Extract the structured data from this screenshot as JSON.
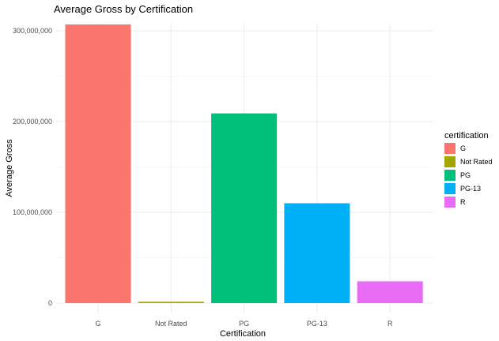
{
  "chart_data": {
    "type": "bar",
    "title": "Average Gross by Certification",
    "xlabel": "Certification",
    "ylabel": "Average Gross",
    "categories": [
      "G",
      "Not Rated",
      "PG",
      "PG-13",
      "R"
    ],
    "values": [
      307000000,
      1500000,
      209000000,
      110000000,
      24000000
    ],
    "colors": [
      "#F8766D",
      "#A3A500",
      "#00BF7D",
      "#00B0F6",
      "#E76BF3"
    ],
    "ylim": [
      0,
      310000000
    ],
    "yticks": [
      0,
      100000000,
      200000000,
      300000000
    ],
    "ytick_labels": [
      "0",
      "100,000,000",
      "200,000,000",
      "300,000,000"
    ],
    "grid": true,
    "legend": {
      "title": "certification",
      "position": "right",
      "items": [
        "G",
        "Not Rated",
        "PG",
        "PG-13",
        "R"
      ]
    }
  }
}
